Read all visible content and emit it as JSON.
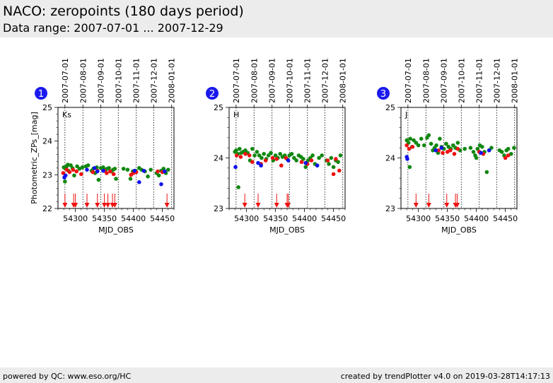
{
  "header": {
    "title": "NACO: zeropoints (180 days period)",
    "subtitle": "Data range: 2007-07-01 ... 2007-12-29"
  },
  "footer": {
    "left": "powered by QC: www.eso.org/HC",
    "right": "created by trendPlotter v4.0 on 2019-03-28T14:17:13"
  },
  "colors": {
    "red": "#ee1111",
    "green": "#118811",
    "blue": "#1111ee",
    "badge": "#1a1aee"
  },
  "chart_data": [
    {
      "type": "scatter",
      "panel": "1",
      "band": "Ks",
      "xlabel": "MJD_OBS",
      "ylabel": "Photometric_ZPs_[mag]",
      "xlim": [
        54270,
        54470
      ],
      "ylim": [
        22,
        25
      ],
      "xticks": [
        54300,
        54350,
        54400,
        54450
      ],
      "yticks": [
        22,
        23,
        24,
        25
      ],
      "date_ticks": [
        {
          "label": "2007-07-01",
          "mjd": 54282
        },
        {
          "label": "2007-08-01",
          "mjd": 54313
        },
        {
          "label": "2007-09-01",
          "mjd": 54344
        },
        {
          "label": "2007-10-01",
          "mjd": 54374
        },
        {
          "label": "2007-11-01",
          "mjd": 54405
        },
        {
          "label": "2007-12-01",
          "mjd": 54435
        },
        {
          "label": "2008-01-01",
          "mjd": 54466
        }
      ],
      "arrows": [
        54282,
        54297,
        54300,
        54320,
        54338,
        54350,
        54356,
        54364,
        54368,
        54458
      ],
      "series": [
        {
          "name": "green",
          "color": "green",
          "points": [
            [
              54280,
              23.22
            ],
            [
              54283,
              23.18
            ],
            [
              54285,
              23.25
            ],
            [
              54288,
              23.12
            ],
            [
              54292,
              23.28
            ],
            [
              54295,
              23.2
            ],
            [
              54298,
              22.98
            ],
            [
              54303,
              23.25
            ],
            [
              54307,
              23.18
            ],
            [
              54312,
              23.22
            ],
            [
              54318,
              23.25
            ],
            [
              54322,
              23.28
            ],
            [
              54328,
              23.12
            ],
            [
              54331,
              23.18
            ],
            [
              54334,
              23.05
            ],
            [
              54337,
              23.22
            ],
            [
              54340,
              22.85
            ],
            [
              54344,
              23.2
            ],
            [
              54348,
              23.22
            ],
            [
              54352,
              23.15
            ],
            [
              54355,
              23.18
            ],
            [
              54358,
              23.2
            ],
            [
              54362,
              23.1
            ],
            [
              54365,
              23.15
            ],
            [
              54368,
              23.18
            ],
            [
              54370,
              22.88
            ],
            [
              54383,
              23.18
            ],
            [
              54390,
              23.15
            ],
            [
              54395,
              22.88
            ],
            [
              54399,
              23.1
            ],
            [
              54404,
              23.12
            ],
            [
              54410,
              23.2
            ],
            [
              54414,
              23.15
            ],
            [
              54420,
              23.1
            ],
            [
              54425,
              22.95
            ],
            [
              54430,
              23.15
            ],
            [
              54440,
              23.05
            ],
            [
              54444,
              22.98
            ],
            [
              54448,
              23.12
            ],
            [
              54452,
              23.18
            ],
            [
              54456,
              23.05
            ],
            [
              54460,
              23.15
            ],
            [
              54282,
              22.8
            ],
            [
              54287,
              23.3
            ]
          ]
        },
        {
          "name": "red",
          "color": "red",
          "points": [
            [
              54279,
              23.05
            ],
            [
              54285,
              23.15
            ],
            [
              54290,
              23.08
            ],
            [
              54296,
              23.15
            ],
            [
              54302,
              23.1
            ],
            [
              54310,
              23.02
            ],
            [
              54330,
              23.08
            ],
            [
              54338,
              23.12
            ],
            [
              54350,
              23.12
            ],
            [
              54354,
              23.05
            ],
            [
              54360,
              23.1
            ],
            [
              54366,
              23.02
            ],
            [
              54396,
              23.0
            ],
            [
              54400,
              23.05
            ],
            [
              54405,
              23.08
            ],
            [
              54442,
              23.1
            ],
            [
              54450,
              23.08
            ]
          ]
        },
        {
          "name": "blue",
          "color": "blue",
          "points": [
            [
              54281,
              22.92
            ],
            [
              54283,
              22.98
            ],
            [
              54320,
              23.15
            ],
            [
              54333,
              23.2
            ],
            [
              54338,
              23.1
            ],
            [
              54348,
              23.12
            ],
            [
              54402,
              23.12
            ],
            [
              54410,
              22.78
            ],
            [
              54418,
              23.12
            ],
            [
              54448,
              22.72
            ],
            [
              54454,
              23.1
            ]
          ]
        }
      ]
    },
    {
      "type": "scatter",
      "panel": "2",
      "band": "H",
      "xlabel": "MJD_OBS",
      "ylabel": "",
      "xlim": [
        54270,
        54470
      ],
      "ylim": [
        23,
        25
      ],
      "xticks": [
        54300,
        54350,
        54400,
        54450
      ],
      "yticks": [
        23,
        24,
        25
      ],
      "date_ticks": [
        {
          "label": "2007-07-01",
          "mjd": 54282
        },
        {
          "label": "2007-08-01",
          "mjd": 54313
        },
        {
          "label": "2007-09-01",
          "mjd": 54344
        },
        {
          "label": "2007-10-01",
          "mjd": 54374
        },
        {
          "label": "2007-11-01",
          "mjd": 54405
        },
        {
          "label": "2007-12-01",
          "mjd": 54435
        },
        {
          "label": "2008-01-01",
          "mjd": 54466
        }
      ],
      "arrows": [
        54297,
        54320,
        54352,
        54370,
        54372
      ],
      "series": [
        {
          "name": "green",
          "color": "green",
          "points": [
            [
              54280,
              24.12
            ],
            [
              54282,
              24.15
            ],
            [
              54285,
              24.08
            ],
            [
              54288,
              24.18
            ],
            [
              54291,
              24.1
            ],
            [
              54294,
              24.12
            ],
            [
              54298,
              24.15
            ],
            [
              54302,
              24.1
            ],
            [
              54306,
              23.95
            ],
            [
              54310,
              24.18
            ],
            [
              54314,
              24.05
            ],
            [
              54318,
              24.12
            ],
            [
              54322,
              24.05
            ],
            [
              54326,
              24.0
            ],
            [
              54330,
              24.08
            ],
            [
              54334,
              23.98
            ],
            [
              54338,
              24.05
            ],
            [
              54342,
              24.1
            ],
            [
              54346,
              23.95
            ],
            [
              54350,
              24.05
            ],
            [
              54354,
              24.0
            ],
            [
              54358,
              24.08
            ],
            [
              54362,
              24.02
            ],
            [
              54366,
              24.05
            ],
            [
              54370,
              23.98
            ],
            [
              54374,
              24.05
            ],
            [
              54378,
              24.08
            ],
            [
              54382,
              24.0
            ],
            [
              54386,
              23.95
            ],
            [
              54390,
              24.05
            ],
            [
              54394,
              24.02
            ],
            [
              54398,
              23.98
            ],
            [
              54402,
              23.82
            ],
            [
              54406,
              23.95
            ],
            [
              54410,
              24.0
            ],
            [
              54414,
              24.05
            ],
            [
              54418,
              23.88
            ],
            [
              54425,
              24.0
            ],
            [
              54430,
              24.05
            ],
            [
              54438,
              23.95
            ],
            [
              54442,
              23.88
            ],
            [
              54446,
              24.0
            ],
            [
              54450,
              23.82
            ],
            [
              54454,
              23.95
            ],
            [
              54458,
              23.92
            ],
            [
              54462,
              24.05
            ],
            [
              54286,
              23.42
            ]
          ]
        },
        {
          "name": "red",
          "color": "red",
          "points": [
            [
              54283,
              24.05
            ],
            [
              54290,
              24.02
            ],
            [
              54298,
              24.08
            ],
            [
              54305,
              24.05
            ],
            [
              54310,
              23.92
            ],
            [
              54325,
              23.88
            ],
            [
              54333,
              23.95
            ],
            [
              54345,
              24.0
            ],
            [
              54352,
              23.98
            ],
            [
              54360,
              23.85
            ],
            [
              54368,
              24.0
            ],
            [
              54395,
              23.92
            ],
            [
              54405,
              23.88
            ],
            [
              54412,
              23.95
            ],
            [
              54440,
              23.95
            ],
            [
              54450,
              23.68
            ],
            [
              54454,
              23.98
            ],
            [
              54460,
              23.75
            ]
          ]
        },
        {
          "name": "blue",
          "color": "blue",
          "points": [
            [
              54281,
              23.82
            ],
            [
              54320,
              23.9
            ],
            [
              54325,
              23.85
            ],
            [
              54372,
              23.95
            ],
            [
              54402,
              23.9
            ],
            [
              54422,
              23.85
            ]
          ]
        }
      ]
    },
    {
      "type": "scatter",
      "panel": "3",
      "band": "J",
      "xlabel": "MJD_OBS",
      "ylabel": "",
      "xlim": [
        54270,
        54470
      ],
      "ylim": [
        23,
        25
      ],
      "xticks": [
        54300,
        54350,
        54400,
        54450
      ],
      "yticks": [
        23,
        24,
        25
      ],
      "date_ticks": [
        {
          "label": "2007-07-01",
          "mjd": 54282
        },
        {
          "label": "2007-08-01",
          "mjd": 54313
        },
        {
          "label": "2007-09-01",
          "mjd": 54344
        },
        {
          "label": "2007-10-01",
          "mjd": 54374
        },
        {
          "label": "2007-11-01",
          "mjd": 54405
        },
        {
          "label": "2007-12-01",
          "mjd": 54435
        },
        {
          "label": "2008-01-01",
          "mjd": 54466
        }
      ],
      "arrows": [
        54296,
        54318,
        54349,
        54364,
        54367
      ],
      "series": [
        {
          "name": "green",
          "color": "green",
          "points": [
            [
              54280,
              24.35
            ],
            [
              54283,
              24.3
            ],
            [
              54286,
              24.38
            ],
            [
              54289,
              24.22
            ],
            [
              54292,
              24.35
            ],
            [
              54296,
              24.3
            ],
            [
              54300,
              24.25
            ],
            [
              54305,
              24.38
            ],
            [
              54310,
              24.25
            ],
            [
              54315,
              24.4
            ],
            [
              54318,
              24.45
            ],
            [
              54322,
              24.28
            ],
            [
              54325,
              24.15
            ],
            [
              54328,
              24.2
            ],
            [
              54331,
              24.25
            ],
            [
              54334,
              24.1
            ],
            [
              54337,
              24.38
            ],
            [
              54340,
              24.22
            ],
            [
              54344,
              24.18
            ],
            [
              54348,
              24.28
            ],
            [
              54352,
              24.22
            ],
            [
              54356,
              24.18
            ],
            [
              54360,
              24.25
            ],
            [
              54364,
              24.2
            ],
            [
              54368,
              24.3
            ],
            [
              54372,
              24.15
            ],
            [
              54380,
              24.18
            ],
            [
              54390,
              24.2
            ],
            [
              54395,
              24.12
            ],
            [
              54398,
              24.05
            ],
            [
              54402,
              24.18
            ],
            [
              54406,
              24.25
            ],
            [
              54410,
              24.22
            ],
            [
              54414,
              24.12
            ],
            [
              54418,
              23.72
            ],
            [
              54422,
              24.15
            ],
            [
              54426,
              24.2
            ],
            [
              54440,
              24.15
            ],
            [
              54444,
              24.12
            ],
            [
              54448,
              24.05
            ],
            [
              54452,
              24.15
            ],
            [
              54455,
              24.18
            ],
            [
              54460,
              24.08
            ],
            [
              54465,
              24.2
            ],
            [
              54285,
              23.82
            ],
            [
              54400,
              24.0
            ]
          ]
        },
        {
          "name": "red",
          "color": "red",
          "points": [
            [
              54280,
              24.25
            ],
            [
              54284,
              24.18
            ],
            [
              54290,
              24.22
            ],
            [
              54335,
              24.15
            ],
            [
              54342,
              24.1
            ],
            [
              54350,
              24.12
            ],
            [
              54355,
              24.15
            ],
            [
              54362,
              24.08
            ],
            [
              54368,
              24.18
            ],
            [
              54405,
              24.12
            ],
            [
              54412,
              24.08
            ],
            [
              54450,
              24.0
            ],
            [
              54455,
              24.05
            ]
          ]
        },
        {
          "name": "blue",
          "color": "blue",
          "points": [
            [
              54280,
              24.02
            ],
            [
              54281,
              23.98
            ],
            [
              54330,
              24.15
            ],
            [
              54340,
              24.2
            ],
            [
              54408,
              24.1
            ],
            [
              54422,
              24.15
            ]
          ]
        }
      ]
    }
  ]
}
